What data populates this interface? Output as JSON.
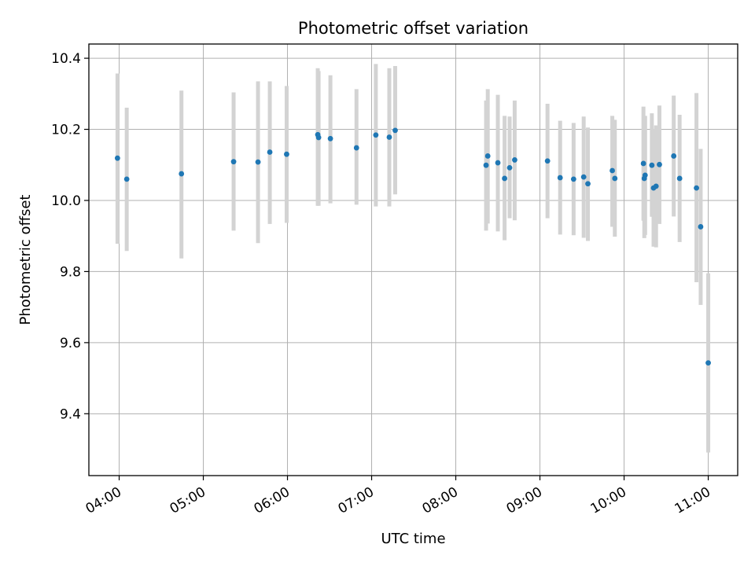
{
  "chart_data": {
    "type": "scatter",
    "title": "Photometric offset variation",
    "xlabel": "UTC time",
    "ylabel": "Photometric offset",
    "xlim": [
      3.64,
      11.35
    ],
    "ylim": [
      9.226,
      10.44
    ],
    "grid": true,
    "x_ticks": [
      4,
      5,
      6,
      7,
      8,
      9,
      10,
      11
    ],
    "x_tick_labels": [
      "04:00",
      "05:00",
      "06:00",
      "07:00",
      "08:00",
      "09:00",
      "10:00",
      "11:00"
    ],
    "y_ticks": [
      9.4,
      9.6,
      9.8,
      10.0,
      10.2,
      10.4
    ],
    "y_tick_labels": [
      "9.4",
      "9.6",
      "9.8",
      "10.0",
      "10.2",
      "10.4"
    ],
    "marker_color": "#1f77b4",
    "errorbar_color": "#d3d3d3",
    "points": [
      {
        "x": 3.98,
        "y": 10.119,
        "ylo": 9.878,
        "yhi": 10.357
      },
      {
        "x": 4.09,
        "y": 10.06,
        "ylo": 9.858,
        "yhi": 10.261
      },
      {
        "x": 4.74,
        "y": 10.075,
        "ylo": 9.837,
        "yhi": 10.309
      },
      {
        "x": 5.36,
        "y": 10.109,
        "ylo": 9.915,
        "yhi": 10.304
      },
      {
        "x": 5.65,
        "y": 10.108,
        "ylo": 9.88,
        "yhi": 10.335
      },
      {
        "x": 5.79,
        "y": 10.136,
        "ylo": 9.934,
        "yhi": 10.335
      },
      {
        "x": 5.99,
        "y": 10.13,
        "ylo": 9.937,
        "yhi": 10.322
      },
      {
        "x": 6.36,
        "y": 10.185,
        "ylo": 9.985,
        "yhi": 10.372
      },
      {
        "x": 6.37,
        "y": 10.177,
        "ylo": 9.985,
        "yhi": 10.364
      },
      {
        "x": 6.51,
        "y": 10.174,
        "ylo": 9.992,
        "yhi": 10.352
      },
      {
        "x": 6.82,
        "y": 10.148,
        "ylo": 9.988,
        "yhi": 10.313
      },
      {
        "x": 7.05,
        "y": 10.184,
        "ylo": 9.983,
        "yhi": 10.384
      },
      {
        "x": 7.21,
        "y": 10.178,
        "ylo": 9.983,
        "yhi": 10.372
      },
      {
        "x": 7.28,
        "y": 10.197,
        "ylo": 10.017,
        "yhi": 10.378
      },
      {
        "x": 8.36,
        "y": 10.099,
        "ylo": 9.915,
        "yhi": 10.281
      },
      {
        "x": 8.38,
        "y": 10.125,
        "ylo": 9.935,
        "yhi": 10.313
      },
      {
        "x": 8.5,
        "y": 10.106,
        "ylo": 9.913,
        "yhi": 10.297
      },
      {
        "x": 8.58,
        "y": 10.062,
        "ylo": 9.888,
        "yhi": 10.238
      },
      {
        "x": 8.64,
        "y": 10.092,
        "ylo": 9.95,
        "yhi": 10.236
      },
      {
        "x": 8.7,
        "y": 10.114,
        "ylo": 9.944,
        "yhi": 10.281
      },
      {
        "x": 9.09,
        "y": 10.111,
        "ylo": 9.95,
        "yhi": 10.272
      },
      {
        "x": 9.24,
        "y": 10.064,
        "ylo": 9.904,
        "yhi": 10.224
      },
      {
        "x": 9.4,
        "y": 10.06,
        "ylo": 9.902,
        "yhi": 10.218
      },
      {
        "x": 9.52,
        "y": 10.066,
        "ylo": 9.895,
        "yhi": 10.236
      },
      {
        "x": 9.57,
        "y": 10.047,
        "ylo": 9.886,
        "yhi": 10.205
      },
      {
        "x": 9.86,
        "y": 10.084,
        "ylo": 9.926,
        "yhi": 10.238
      },
      {
        "x": 9.89,
        "y": 10.062,
        "ylo": 9.898,
        "yhi": 10.227
      },
      {
        "x": 10.23,
        "y": 10.104,
        "ylo": 9.943,
        "yhi": 10.264
      },
      {
        "x": 10.24,
        "y": 10.062,
        "ylo": 9.894,
        "yhi": 10.227
      },
      {
        "x": 10.25,
        "y": 10.071,
        "ylo": 9.903,
        "yhi": 10.238
      },
      {
        "x": 10.33,
        "y": 10.099,
        "ylo": 9.954,
        "yhi": 10.245
      },
      {
        "x": 10.35,
        "y": 10.035,
        "ylo": 9.87,
        "yhi": 10.201
      },
      {
        "x": 10.38,
        "y": 10.04,
        "ylo": 9.868,
        "yhi": 10.211
      },
      {
        "x": 10.42,
        "y": 10.101,
        "ylo": 9.934,
        "yhi": 10.267
      },
      {
        "x": 10.59,
        "y": 10.125,
        "ylo": 9.955,
        "yhi": 10.295
      },
      {
        "x": 10.66,
        "y": 10.062,
        "ylo": 9.883,
        "yhi": 10.241
      },
      {
        "x": 10.86,
        "y": 10.035,
        "ylo": 9.77,
        "yhi": 10.302
      },
      {
        "x": 10.91,
        "y": 9.926,
        "ylo": 9.706,
        "yhi": 10.145
      },
      {
        "x": 11.0,
        "y": 9.543,
        "ylo": 9.291,
        "yhi": 9.795
      }
    ]
  }
}
